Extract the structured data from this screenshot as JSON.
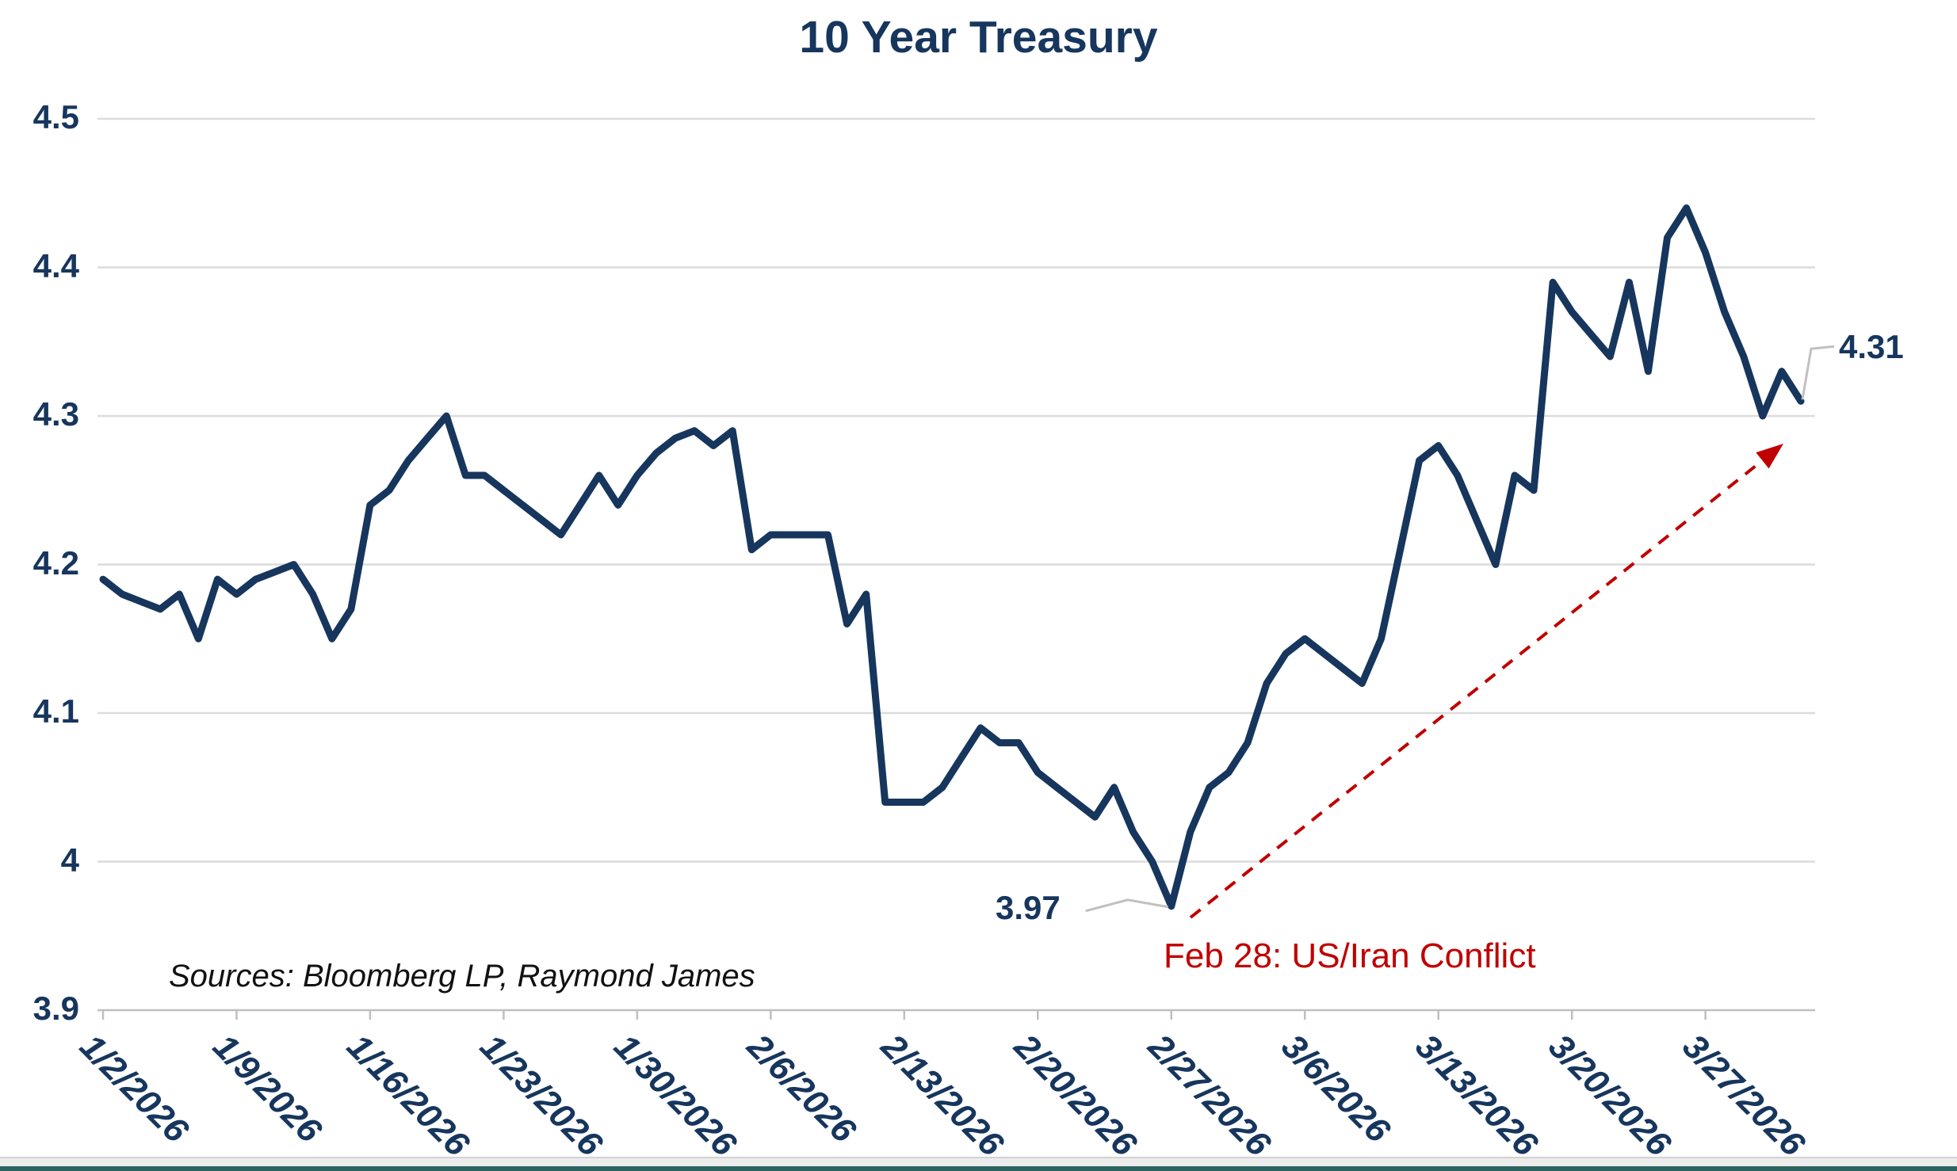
{
  "title": "10 Year Treasury",
  "source_note": "Sources: Bloomberg LP, Raymond James",
  "annotations": {
    "low_label": "3.97",
    "end_label": "4.31",
    "event_label": "Feb 28: US/Iran Conflict"
  },
  "colors": {
    "line": "#17365d",
    "axis_text": "#17365d",
    "event_red": "#c00000",
    "gridline": "#dcdcdc",
    "axis_line": "#bfbfbf",
    "leader": "#c0c0c0"
  },
  "chart_data": {
    "type": "line",
    "title": "10 Year Treasury",
    "xlabel": "",
    "ylabel": "",
    "ylim": [
      3.9,
      4.5
    ],
    "grid": "horizontal-only",
    "legend": "none",
    "y_ticks": [
      "4.5",
      "4.4",
      "4.3",
      "4.2",
      "4.1",
      "4",
      "3.9"
    ],
    "x_tick_labels": [
      "1/2/2026",
      "1/9/2026",
      "1/16/2026",
      "1/23/2026",
      "1/30/2026",
      "2/6/2026",
      "2/13/2026",
      "2/20/2026",
      "2/27/2026",
      "3/6/2026",
      "3/13/2026",
      "3/20/2026",
      "3/27/2026"
    ],
    "annotations": [
      {
        "type": "data-label",
        "text": "3.97",
        "attached_to": "2/27/2026"
      },
      {
        "type": "data-label",
        "text": "4.31",
        "attached_to": "4/1/2026"
      },
      {
        "type": "callout-arrow",
        "text": "Feb 28: US/Iran Conflict",
        "style": "red-dashed-arrow",
        "from_near": "2/27/2026 low",
        "to_near": "end of series"
      }
    ],
    "series": [
      {
        "name": "10 Year Treasury Yield",
        "points": [
          {
            "date": "1/2/2026",
            "value": 4.19
          },
          {
            "date": "1/3/2026",
            "value": 4.18
          },
          {
            "date": "1/4/2026",
            "value": 4.175
          },
          {
            "date": "1/5/2026",
            "value": 4.17
          },
          {
            "date": "1/6/2026",
            "value": 4.18
          },
          {
            "date": "1/7/2026",
            "value": 4.15
          },
          {
            "date": "1/8/2026",
            "value": 4.19
          },
          {
            "date": "1/9/2026",
            "value": 4.18
          },
          {
            "date": "1/10/2026",
            "value": 4.19
          },
          {
            "date": "1/11/2026",
            "value": 4.195
          },
          {
            "date": "1/12/2026",
            "value": 4.2
          },
          {
            "date": "1/13/2026",
            "value": 4.18
          },
          {
            "date": "1/14/2026",
            "value": 4.15
          },
          {
            "date": "1/15/2026",
            "value": 4.17
          },
          {
            "date": "1/16/2026",
            "value": 4.24
          },
          {
            "date": "1/17/2026",
            "value": 4.25
          },
          {
            "date": "1/18/2026",
            "value": 4.27
          },
          {
            "date": "1/19/2026",
            "value": 4.285
          },
          {
            "date": "1/20/2026",
            "value": 4.3
          },
          {
            "date": "1/21/2026",
            "value": 4.26
          },
          {
            "date": "1/22/2026",
            "value": 4.26
          },
          {
            "date": "1/23/2026",
            "value": 4.25
          },
          {
            "date": "1/24/2026",
            "value": 4.24
          },
          {
            "date": "1/25/2026",
            "value": 4.23
          },
          {
            "date": "1/26/2026",
            "value": 4.22
          },
          {
            "date": "1/27/2026",
            "value": 4.24
          },
          {
            "date": "1/28/2026",
            "value": 4.26
          },
          {
            "date": "1/29/2026",
            "value": 4.24
          },
          {
            "date": "1/30/2026",
            "value": 4.26
          },
          {
            "date": "1/31/2026",
            "value": 4.275
          },
          {
            "date": "2/1/2026",
            "value": 4.285
          },
          {
            "date": "2/2/2026",
            "value": 4.29
          },
          {
            "date": "2/3/2026",
            "value": 4.28
          },
          {
            "date": "2/4/2026",
            "value": 4.29
          },
          {
            "date": "2/5/2026",
            "value": 4.21
          },
          {
            "date": "2/6/2026",
            "value": 4.22
          },
          {
            "date": "2/7/2026",
            "value": 4.22
          },
          {
            "date": "2/8/2026",
            "value": 4.22
          },
          {
            "date": "2/9/2026",
            "value": 4.22
          },
          {
            "date": "2/10/2026",
            "value": 4.16
          },
          {
            "date": "2/11/2026",
            "value": 4.18
          },
          {
            "date": "2/12/2026",
            "value": 4.04
          },
          {
            "date": "2/13/2026",
            "value": 4.04
          },
          {
            "date": "2/14/2026",
            "value": 4.04
          },
          {
            "date": "2/15/2026",
            "value": 4.05
          },
          {
            "date": "2/16/2026",
            "value": 4.07
          },
          {
            "date": "2/17/2026",
            "value": 4.09
          },
          {
            "date": "2/18/2026",
            "value": 4.08
          },
          {
            "date": "2/19/2026",
            "value": 4.08
          },
          {
            "date": "2/20/2026",
            "value": 4.06
          },
          {
            "date": "2/21/2026",
            "value": 4.05
          },
          {
            "date": "2/22/2026",
            "value": 4.04
          },
          {
            "date": "2/23/2026",
            "value": 4.03
          },
          {
            "date": "2/24/2026",
            "value": 4.05
          },
          {
            "date": "2/25/2026",
            "value": 4.02
          },
          {
            "date": "2/26/2026",
            "value": 4.0
          },
          {
            "date": "2/27/2026",
            "value": 3.97
          },
          {
            "date": "2/28/2026",
            "value": 4.02
          },
          {
            "date": "3/1/2026",
            "value": 4.05
          },
          {
            "date": "3/2/2026",
            "value": 4.06
          },
          {
            "date": "3/3/2026",
            "value": 4.08
          },
          {
            "date": "3/4/2026",
            "value": 4.12
          },
          {
            "date": "3/5/2026",
            "value": 4.14
          },
          {
            "date": "3/6/2026",
            "value": 4.15
          },
          {
            "date": "3/7/2026",
            "value": 4.14
          },
          {
            "date": "3/8/2026",
            "value": 4.13
          },
          {
            "date": "3/9/2026",
            "value": 4.12
          },
          {
            "date": "3/10/2026",
            "value": 4.15
          },
          {
            "date": "3/11/2026",
            "value": 4.21
          },
          {
            "date": "3/12/2026",
            "value": 4.27
          },
          {
            "date": "3/13/2026",
            "value": 4.28
          },
          {
            "date": "3/14/2026",
            "value": 4.26
          },
          {
            "date": "3/15/2026",
            "value": 4.23
          },
          {
            "date": "3/16/2026",
            "value": 4.2
          },
          {
            "date": "3/17/2026",
            "value": 4.26
          },
          {
            "date": "3/18/2026",
            "value": 4.25
          },
          {
            "date": "3/19/2026",
            "value": 4.39
          },
          {
            "date": "3/20/2026",
            "value": 4.37
          },
          {
            "date": "3/21/2026",
            "value": 4.355
          },
          {
            "date": "3/22/2026",
            "value": 4.34
          },
          {
            "date": "3/23/2026",
            "value": 4.39
          },
          {
            "date": "3/24/2026",
            "value": 4.33
          },
          {
            "date": "3/25/2026",
            "value": 4.42
          },
          {
            "date": "3/26/2026",
            "value": 4.44
          },
          {
            "date": "3/27/2026",
            "value": 4.41
          },
          {
            "date": "3/28/2026",
            "value": 4.37
          },
          {
            "date": "3/29/2026",
            "value": 4.34
          },
          {
            "date": "3/30/2026",
            "value": 4.3
          },
          {
            "date": "3/31/2026",
            "value": 4.33
          },
          {
            "date": "4/1/2026",
            "value": 4.31
          }
        ]
      }
    ]
  }
}
